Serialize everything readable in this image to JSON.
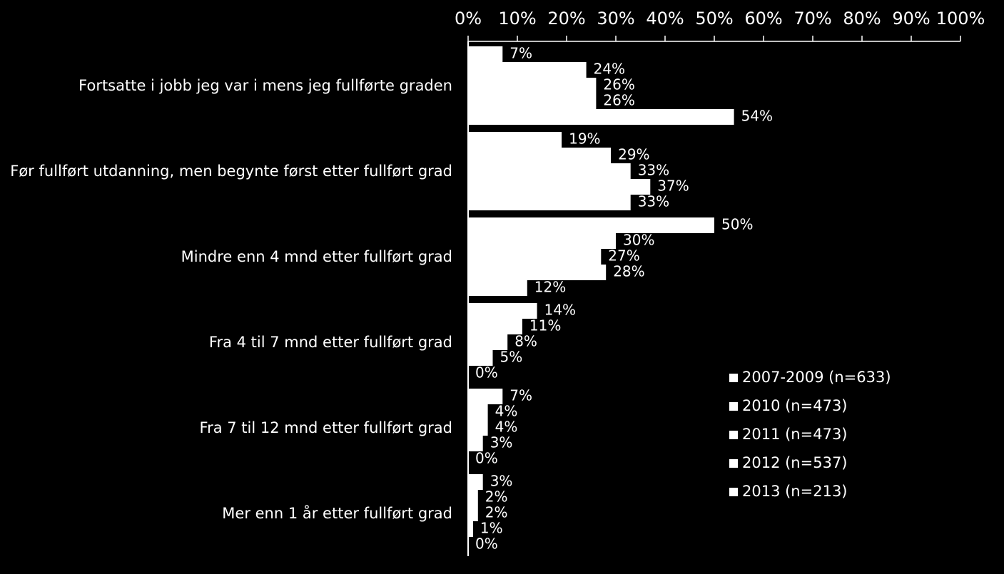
{
  "chart_data": {
    "type": "barh",
    "categories": [
      "Fortsatte i jobb jeg var i mens jeg fullførte graden",
      "Før fullført utdanning, men begynte først etter fullført grad",
      "Mindre enn 4 mnd etter fullført grad",
      "Fra 4 til 7 mnd etter fullført grad",
      "Fra 7 til 12 mnd etter fullført grad",
      "Mer enn 1 år etter fullført grad"
    ],
    "series": [
      {
        "name": "2007-2009 (n=633)",
        "color": "#ffffff",
        "values": [
          7,
          19,
          50,
          14,
          7,
          3
        ],
        "value_labels": [
          "7%",
          "19%",
          "50%",
          "14%",
          "7%",
          "3%"
        ]
      },
      {
        "name": "2010 (n=473)",
        "color": "#ffffff",
        "values": [
          24,
          29,
          30,
          11,
          4,
          2
        ],
        "value_labels": [
          "24%",
          "29%",
          "30%",
          "11%",
          "4%",
          "2%"
        ]
      },
      {
        "name": "2011 (n=473)",
        "color": "#ffffff",
        "values": [
          26,
          33,
          27,
          8,
          4,
          2
        ],
        "value_labels": [
          "26%",
          "33%",
          "27%",
          "8%",
          "4%",
          "2%"
        ]
      },
      {
        "name": "2012 (n=537)",
        "color": "#ffffff",
        "values": [
          26,
          37,
          28,
          5,
          3,
          1
        ],
        "value_labels": [
          "26%",
          "37%",
          "28%",
          "5%",
          "3%",
          "1%"
        ]
      },
      {
        "name": "2013 (n=213)",
        "color": "#ffffff",
        "values": [
          54,
          33,
          12,
          0,
          0,
          0
        ],
        "value_labels": [
          "54%",
          "33%",
          "12%",
          "0%",
          "0%",
          "0%"
        ]
      }
    ],
    "xlim": [
      0,
      100
    ],
    "xticks": [
      {
        "value": 0,
        "label": "0%"
      },
      {
        "value": 10,
        "label": "10%"
      },
      {
        "value": 20,
        "label": "20%"
      },
      {
        "value": 30,
        "label": "30%"
      },
      {
        "value": 40,
        "label": "40%"
      },
      {
        "value": 50,
        "label": "50%"
      },
      {
        "value": 60,
        "label": "60%"
      },
      {
        "value": 70,
        "label": "70%"
      },
      {
        "value": 80,
        "label": "80%"
      },
      {
        "value": 90,
        "label": "90%"
      },
      {
        "value": 100,
        "label": "100%"
      }
    ],
    "legend": "lower right"
  }
}
